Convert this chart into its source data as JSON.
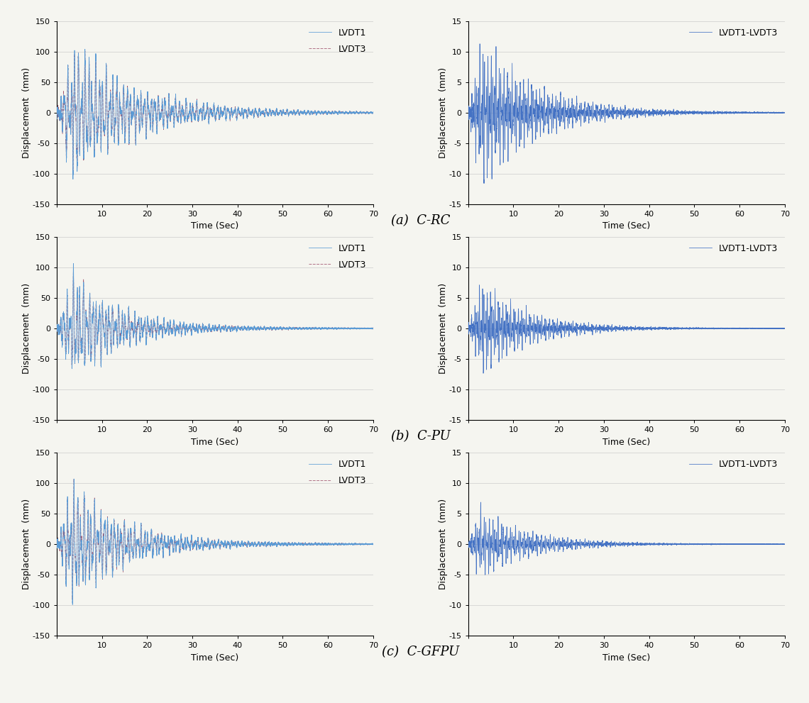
{
  "row_labels": [
    "(a)  C-RC",
    "(b)  C-PU",
    "(c)  C-GFPU"
  ],
  "left_ylabel": "Displacement  (mm)",
  "right_ylabel": "Displacement  (mm)",
  "xlabel": "Time (Sec)",
  "left_ylim": [
    -150,
    150
  ],
  "right_ylim": [
    -15,
    15
  ],
  "xlim": [
    0,
    70
  ],
  "left_yticks": [
    -150,
    -100,
    -50,
    0,
    50,
    100,
    150
  ],
  "right_yticks": [
    -15,
    -10,
    -5,
    0,
    5,
    10,
    15
  ],
  "xticks": [
    0,
    10,
    20,
    30,
    40,
    50,
    60,
    70
  ],
  "left_legend": [
    "LVDT1",
    "LVDT3"
  ],
  "right_legend": [
    "LVDT1-LVDT3"
  ],
  "lvdt1_color": "#5b9bd5",
  "lvdt3_color": "#9e4f6a",
  "diff_color": "#4472c4",
  "background": "#f5f5f0",
  "label_fontsize": 13,
  "tick_fontsize": 8,
  "axis_label_fontsize": 9,
  "legend_fontsize": 9
}
